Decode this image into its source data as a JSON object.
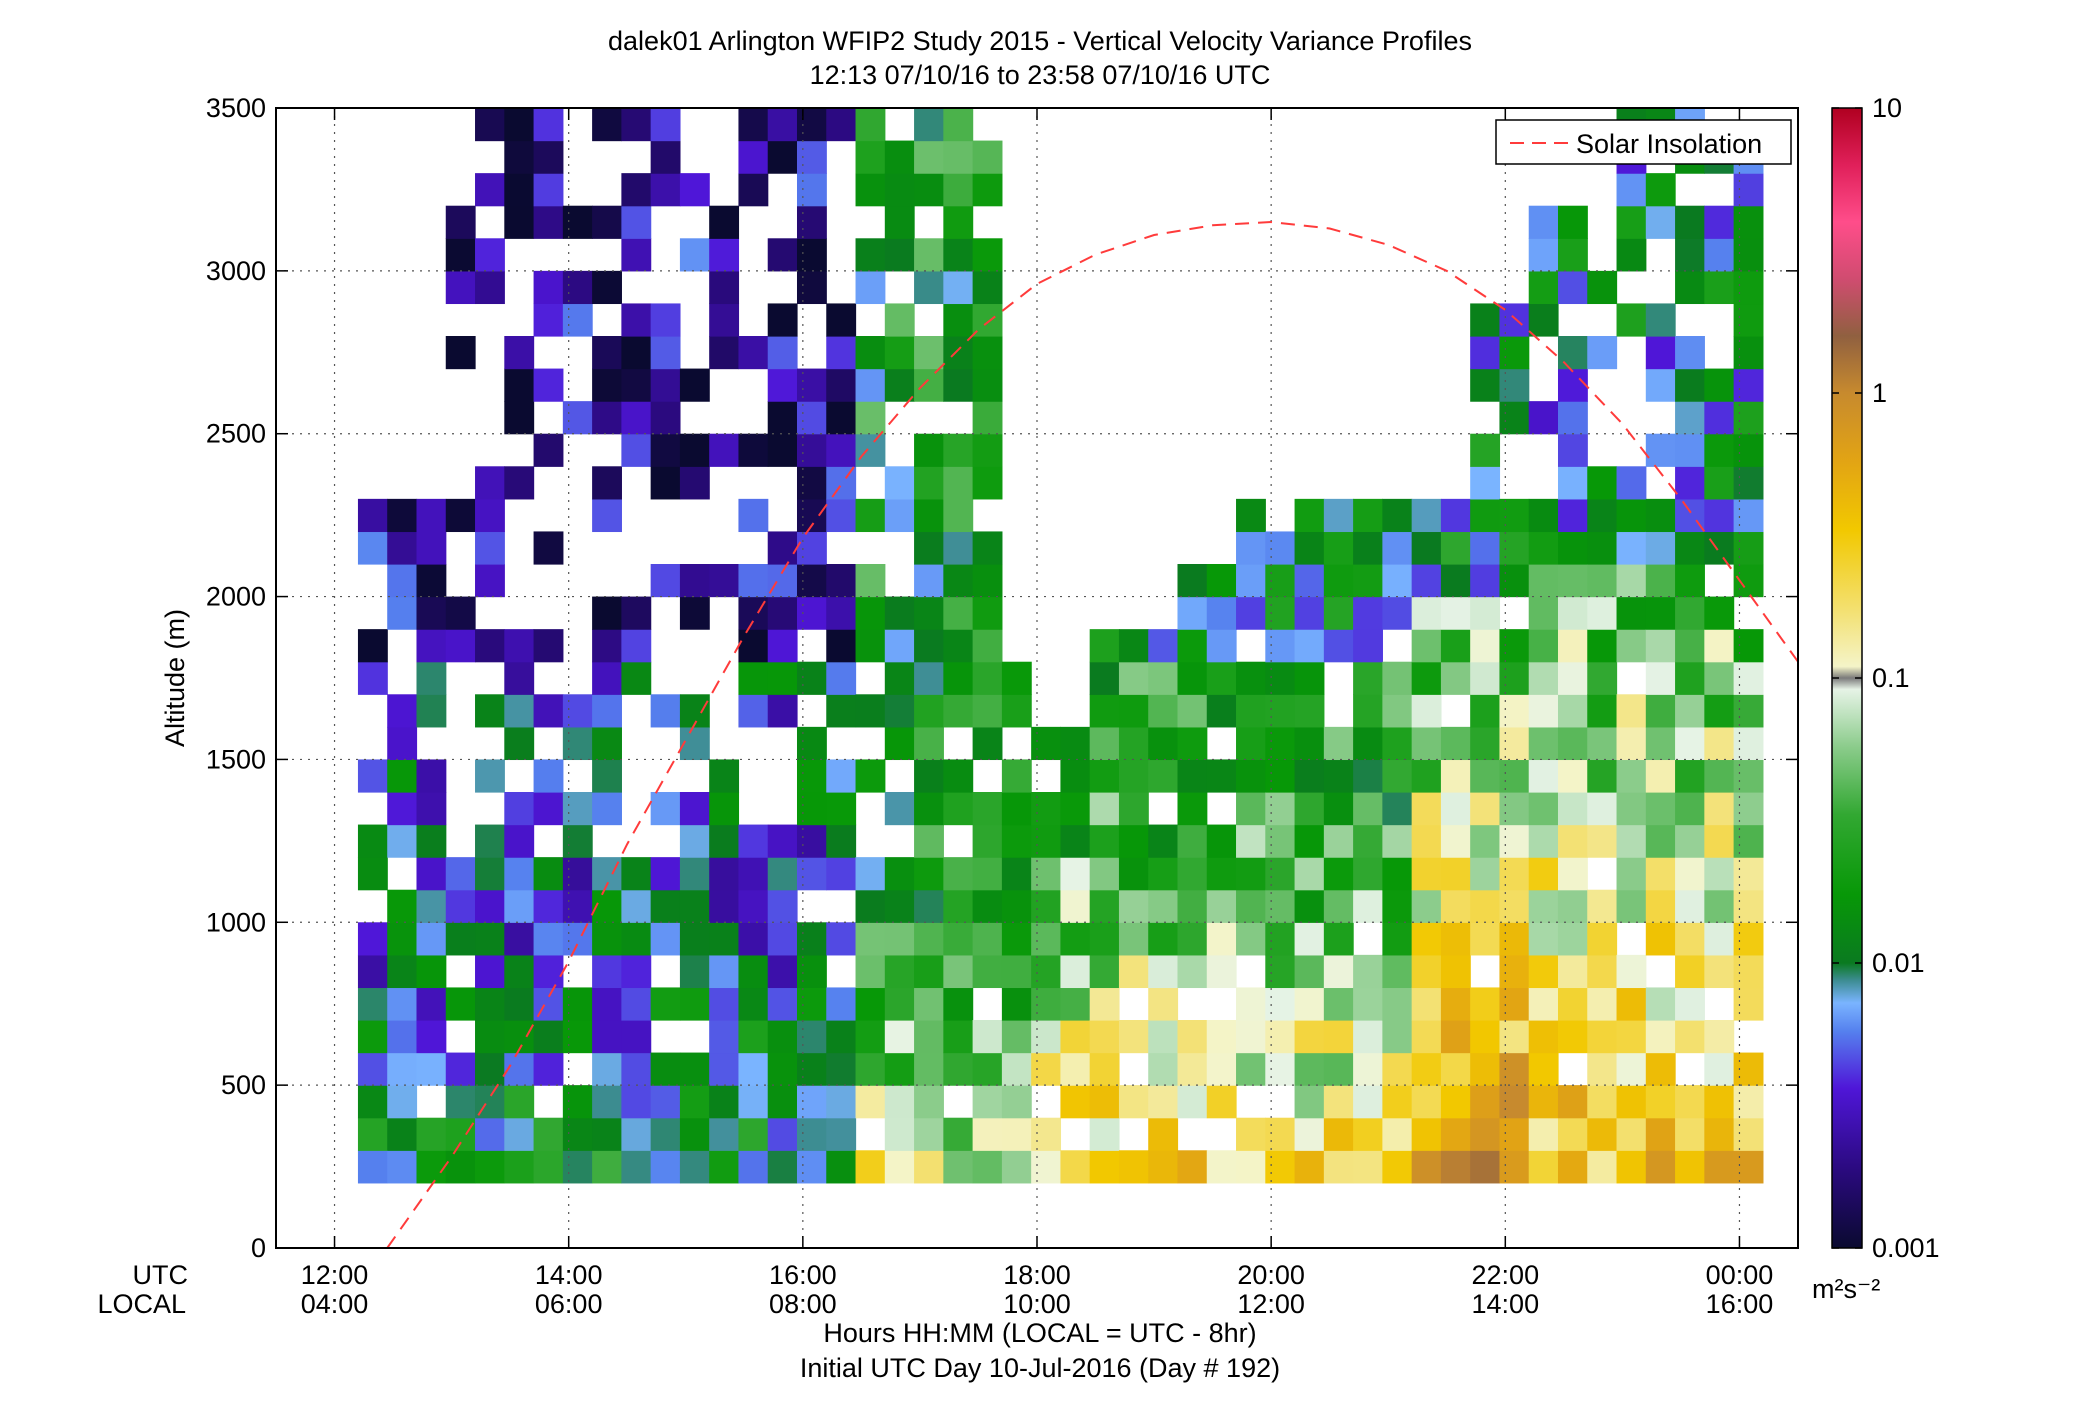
{
  "chart_data": {
    "type": "heatmap",
    "title": "dalek01 Arlington WFIP2 Study 2015 - Vertical Velocity Variance Profiles",
    "subtitle": "12:13 07/10/16 to 23:58 07/10/16  UTC",
    "ylabel": "Altitude (m)",
    "xlabel": "Hours HH:MM  (LOCAL = UTC - 8hr)",
    "xlabel2": "Initial UTC Day 10-Jul-2016 (Day # 192)",
    "x_row_labels": [
      "UTC",
      "LOCAL"
    ],
    "x_ticks_utc": [
      "12:00",
      "14:00",
      "16:00",
      "18:00",
      "20:00",
      "22:00",
      "00:00"
    ],
    "x_ticks_local": [
      "04:00",
      "06:00",
      "08:00",
      "10:00",
      "12:00",
      "14:00",
      "16:00"
    ],
    "x_tick_hours": [
      12,
      14,
      16,
      18,
      20,
      22,
      24
    ],
    "xlim_hours": [
      11.5,
      24.5
    ],
    "y_ticks": [
      0,
      500,
      1000,
      1500,
      2000,
      2500,
      3000,
      3500
    ],
    "ylim": [
      0,
      3500
    ],
    "grid": true,
    "legend": {
      "position": "top-right",
      "entries": [
        {
          "name": "Solar Insolation",
          "color": "#ff3b3b",
          "style": "dashed"
        }
      ]
    },
    "colorbar": {
      "scale": "log",
      "range": [
        0.001,
        10
      ],
      "tick_labels": [
        "10",
        "1",
        "0.1",
        "0.01",
        "0.001"
      ],
      "tick_values": [
        10,
        1,
        0.1,
        0.01,
        0.001
      ],
      "unit_label": "m²s⁻²"
    },
    "solar_insolation_curve": {
      "hours": [
        12.45,
        13.0,
        13.5,
        14.0,
        14.5,
        15.0,
        15.5,
        16.0,
        16.5,
        17.0,
        17.5,
        18.0,
        18.5,
        19.0,
        19.5,
        20.0,
        20.5,
        21.0,
        21.5,
        22.0,
        22.5,
        23.0,
        23.5,
        24.0,
        24.5
      ],
      "altitude_m": [
        0,
        280,
        560,
        880,
        1240,
        1560,
        1880,
        2180,
        2430,
        2640,
        2820,
        2960,
        3050,
        3110,
        3140,
        3150,
        3130,
        3080,
        3000,
        2880,
        2720,
        2530,
        2300,
        2050,
        1800
      ]
    },
    "grid_spec": {
      "x_start_hour": 12.2,
      "bin_hours": 0.25,
      "columns": 48,
      "y_start_m": 200,
      "bin_m": 100,
      "rows": 34
    }
  }
}
